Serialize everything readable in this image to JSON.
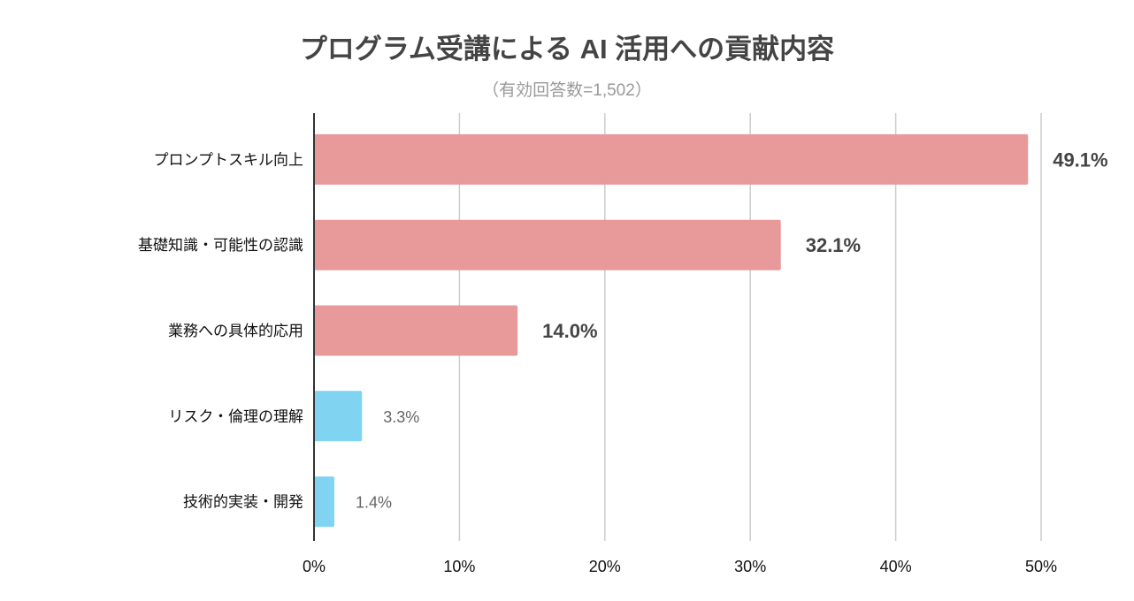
{
  "chart_data": {
    "type": "bar",
    "orientation": "horizontal",
    "title": "プログラム受講による AI 活用への貢献内容",
    "subtitle": "（有効回答数=1,502）",
    "categories": [
      "プロンプトスキル向上",
      "基礎知識・可能性の認識",
      "業務への具体的応用",
      "リスク・倫理の理解",
      "技術的実装・開発"
    ],
    "values": [
      49.1,
      32.1,
      14.0,
      3.3,
      1.4
    ],
    "data_labels": [
      "49.1%",
      "32.1%",
      "14.0%",
      "3.3%",
      "1.4%"
    ],
    "bar_colors": [
      "#e8999a",
      "#e8999a",
      "#e8999a",
      "#80d4f1",
      "#80d4f1"
    ],
    "label_emphasis": [
      true,
      true,
      true,
      false,
      false
    ],
    "xlim": [
      0,
      50
    ],
    "xticks": [
      0,
      10,
      20,
      30,
      40,
      50
    ],
    "xtick_labels": [
      "0%",
      "10%",
      "20%",
      "30%",
      "40%",
      "50%"
    ],
    "grid": "vertical",
    "xlabel": "",
    "ylabel": ""
  }
}
